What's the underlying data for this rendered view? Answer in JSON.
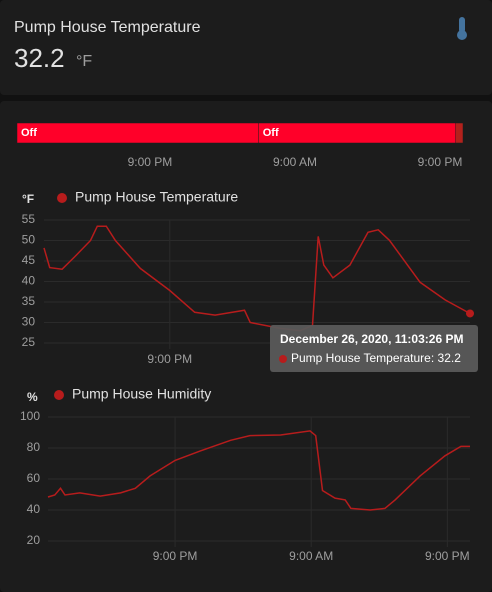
{
  "header": {
    "title": "Pump House Temperature",
    "value": "32.2",
    "unit": "°F"
  },
  "chart_data": [
    {
      "type": "timeline",
      "segments": [
        {
          "label": "Off",
          "start": 0,
          "end": 20.0,
          "color": "#ff0029"
        },
        {
          "label": "Off",
          "start": 20.0,
          "end": 36.3,
          "color": "#ff0029"
        },
        {
          "start": 36.3,
          "end": 36.9,
          "color": "#b3211c"
        }
      ],
      "xlim": [
        0,
        36.9
      ],
      "xticks": [
        {
          "value": 11,
          "label": "9:00 PM"
        },
        {
          "value": 23,
          "label": "9:00 AM"
        },
        {
          "value": 35,
          "label": "9:00 PM"
        }
      ]
    },
    {
      "type": "line",
      "y_label": "°F",
      "x": [
        0,
        0.5,
        1.6,
        2.7,
        4.1,
        4.7,
        5.5,
        6.3,
        8.5,
        11.1,
        13.3,
        15.1,
        17.7,
        18.2,
        20.8,
        22.6,
        23.7,
        24.2,
        24.7,
        25.5,
        27.0,
        28.6,
        29.5,
        30.5,
        33.2,
        35.4,
        37.6
      ],
      "series": [
        {
          "name": "Pump House Temperature",
          "color": "#b71c1c",
          "values": [
            48.2,
            43.4,
            43,
            46,
            50,
            53.5,
            53.5,
            50,
            43.2,
            37.8,
            32.5,
            31.8,
            33,
            30,
            28.6,
            28,
            29.3,
            51,
            44,
            40.9,
            44,
            52,
            52.6,
            50,
            39.8,
            35.5,
            32.2
          ]
        }
      ],
      "xlim": [
        0,
        37.6
      ],
      "ylim": [
        25,
        55
      ],
      "yticks": [
        25,
        30,
        35,
        40,
        45,
        50,
        55
      ],
      "xticks": [
        {
          "value": 11.1,
          "label": "9:00 PM"
        }
      ],
      "grid": true,
      "tooltip": {
        "title": "December 26, 2020, 11:03:26 PM",
        "text": "Pump House Temperature: 32.2"
      }
    },
    {
      "type": "line",
      "y_label": "%",
      "x": [
        0,
        0.6,
        1.1,
        1.5,
        2.8,
        4.6,
        6.4,
        7.7,
        9.0,
        11.2,
        13.4,
        16.1,
        17.8,
        20.5,
        23.1,
        23.6,
        24.2,
        25.3,
        26.2,
        26.7,
        28.4,
        29.7,
        30.6,
        32.8,
        35.0,
        36.4,
        37.2
      ],
      "series": [
        {
          "name": "Pump House Humidity",
          "color": "#b71c1c",
          "values": [
            48.4,
            49.7,
            54,
            49.7,
            51,
            49,
            51,
            54,
            62,
            72,
            78,
            85,
            88,
            88.4,
            91,
            88,
            52.6,
            47.7,
            46.5,
            41,
            40,
            41,
            46.5,
            62,
            75,
            81,
            81
          ]
        }
      ],
      "xlim": [
        0,
        37.2
      ],
      "ylim": [
        20,
        100
      ],
      "yticks": [
        20,
        40,
        60,
        80,
        100
      ],
      "xticks": [
        {
          "value": 11.2,
          "label": "9:00 PM"
        },
        {
          "value": 23.2,
          "label": "9:00 AM"
        },
        {
          "value": 35.2,
          "label": "9:00 PM"
        }
      ],
      "grid": true
    }
  ]
}
